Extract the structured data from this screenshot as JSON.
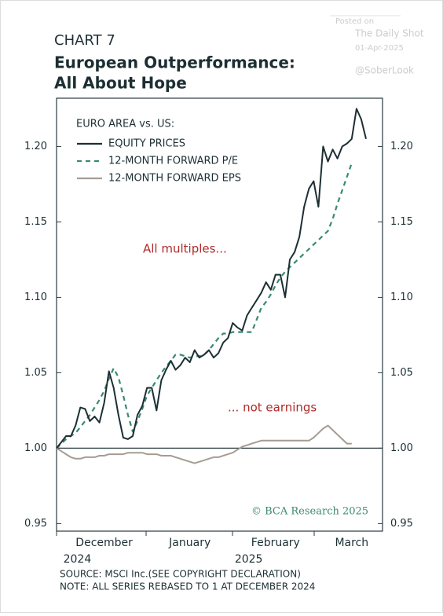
{
  "chart_data": {
    "type": "line",
    "kicker": "CHART 7",
    "title_lines": [
      "European Outperformance:",
      "All About Hope"
    ],
    "watermark": [
      "Posted on",
      "The Daily Shot",
      "01-Apr-2025",
      "@SoberLook"
    ],
    "legend_title": "EURO AREA vs. US:",
    "legend": "upper left",
    "annotations": [
      "All multiples...",
      "... not earnings"
    ],
    "credit": "© BCA Research 2025",
    "source_lines": [
      "SOURCE: MSCI Inc.(SEE COPYRIGHT DECLARATION)",
      "NOTE: ALL SERIES REBASED TO 1 AT DECEMBER 2024"
    ],
    "categories": [
      null,
      null,
      null,
      null,
      null,
      null,
      null,
      null,
      null,
      null,
      "December 2024",
      null,
      null,
      null,
      null,
      null,
      null,
      null,
      null,
      null,
      null,
      null,
      null,
      null,
      null,
      null,
      null,
      null,
      "January",
      null,
      null,
      null,
      null,
      null,
      null,
      null,
      null,
      null,
      null,
      null,
      null,
      null,
      null,
      null,
      null,
      null,
      "February 2025",
      null,
      null,
      null,
      null,
      null,
      null,
      null,
      null,
      null,
      null,
      null,
      null,
      null,
      null,
      null,
      "March",
      null,
      null,
      null
    ],
    "ylim": [
      0.945,
      1.232
    ],
    "yticks": [
      0.95,
      {
        "value": 1,
        "label": "1.00"
      },
      1.05,
      {
        "value": 1.1,
        "label": "1.10"
      },
      1.15,
      {
        "value": 1.2,
        "label": "1.20"
      }
    ],
    "series": [
      {
        "name": "EQUITY PRICES",
        "color": "#1c2f33",
        "style": "solid",
        "values": [
          1.0,
          1.004,
          1.008,
          1.008,
          1.015,
          1.027,
          1.026,
          1.018,
          1.021,
          1.017,
          1.03,
          1.051,
          1.04,
          1.022,
          1.007,
          1.006,
          1.008,
          1.022,
          1.028,
          1.04,
          1.04,
          1.025,
          1.045,
          1.052,
          1.058,
          1.052,
          1.055,
          1.06,
          1.057,
          1.065,
          1.06,
          1.062,
          1.065,
          1.06,
          1.063,
          1.07,
          1.073,
          1.083,
          1.08,
          1.078,
          1.088,
          1.093,
          1.098,
          1.103,
          1.11,
          1.105,
          1.115,
          1.115,
          1.1,
          1.125,
          1.13,
          1.14,
          1.16,
          1.172,
          1.177,
          1.16,
          1.2,
          1.19,
          1.198,
          1.192,
          1.2,
          1.202,
          1.205,
          1.225,
          1.218,
          1.205
        ]
      },
      {
        "name": "12-MONTH FORWARD P/E",
        "color": "#3a8a6e",
        "style": "dashed",
        "values": [
          1.0,
          1.003,
          1.006,
          1.008,
          1.01,
          1.014,
          1.018,
          1.022,
          1.027,
          1.032,
          1.038,
          1.046,
          1.053,
          1.047,
          1.035,
          1.022,
          1.011,
          1.018,
          1.026,
          1.035,
          1.04,
          1.045,
          1.05,
          1.054,
          1.058,
          1.062,
          1.062,
          1.061,
          1.06,
          1.061,
          1.061,
          1.062,
          1.065,
          1.069,
          1.073,
          1.076,
          1.076,
          1.077,
          1.077,
          1.077,
          1.077,
          1.077,
          1.085,
          1.093,
          1.097,
          1.102,
          1.108,
          1.113,
          1.117,
          1.12,
          1.123,
          1.126,
          1.129,
          1.132,
          1.135,
          1.138,
          1.141,
          1.144,
          1.152,
          1.162,
          1.171,
          1.18,
          1.189,
          null,
          null,
          null
        ]
      },
      {
        "name": "12-MONTH FORWARD EPS",
        "color": "#a59d92",
        "style": "solid",
        "values": [
          1.0,
          0.998,
          0.996,
          0.994,
          0.993,
          0.993,
          0.994,
          0.994,
          0.994,
          0.995,
          0.995,
          0.996,
          0.996,
          0.996,
          0.996,
          0.997,
          0.997,
          0.997,
          0.997,
          0.996,
          0.996,
          0.996,
          0.995,
          0.995,
          0.995,
          0.994,
          0.993,
          0.992,
          0.991,
          0.99,
          0.991,
          0.992,
          0.993,
          0.994,
          0.994,
          0.995,
          0.996,
          0.997,
          0.999,
          1.001,
          1.002,
          1.003,
          1.004,
          1.005,
          1.005,
          1.005,
          1.005,
          1.005,
          1.005,
          1.005,
          1.005,
          1.005,
          1.005,
          1.005,
          1.007,
          1.01,
          1.013,
          1.015,
          1.012,
          1.009,
          1.006,
          1.003,
          1.003,
          null,
          null,
          null
        ]
      }
    ]
  }
}
